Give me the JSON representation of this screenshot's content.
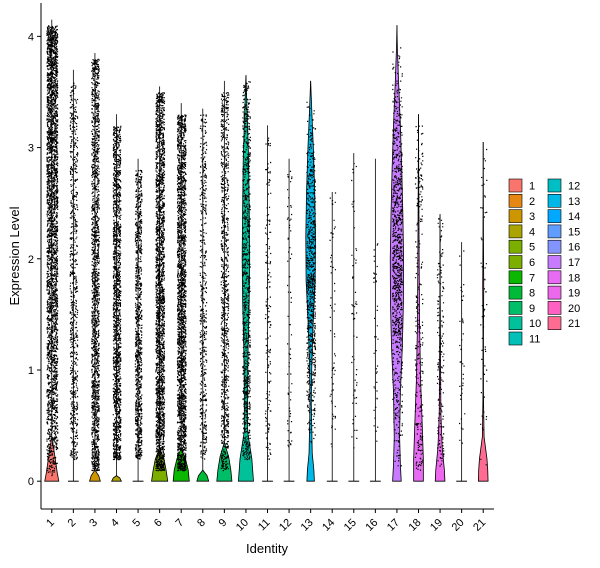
{
  "chart_data": {
    "type": "violin",
    "xlabel": "Identity",
    "ylabel": "Expression Level",
    "ylim": [
      -0.25,
      4.3
    ],
    "yticks": [
      0,
      1,
      2,
      3,
      4
    ],
    "grid": false,
    "legend_placement": "right",
    "categories": [
      "1",
      "2",
      "3",
      "4",
      "5",
      "6",
      "7",
      "8",
      "9",
      "10",
      "11",
      "12",
      "13",
      "14",
      "15",
      "16",
      "17",
      "18",
      "19",
      "20",
      "21"
    ],
    "series": [
      {
        "name": "1",
        "color": "#F8766D",
        "y_max": 4.15,
        "violin_top": 0.4,
        "widths": [
          [
            0,
            0.65
          ],
          [
            0.08,
            0.5
          ],
          [
            0.18,
            0.35
          ],
          [
            0.28,
            0.2
          ],
          [
            0.4,
            0
          ]
        ],
        "points": 3000,
        "point_min": 0.05,
        "point_max": 4.1,
        "point_spread": 0.5,
        "point_mode": "dense_high"
      },
      {
        "name": "2",
        "color": "#E68613",
        "y_max": 3.7,
        "violin_top": 0,
        "widths": [],
        "points": 700,
        "point_min": 0.2,
        "point_max": 3.6,
        "point_spread": 0.35,
        "point_mode": "medium"
      },
      {
        "name": "3",
        "color": "#CD9600",
        "y_max": 3.85,
        "violin_top": 0.1,
        "widths": [
          [
            0,
            0.5
          ],
          [
            0.05,
            0.35
          ],
          [
            0.1,
            0
          ]
        ],
        "points": 1600,
        "point_min": 0.1,
        "point_max": 3.8,
        "point_spread": 0.35,
        "point_mode": "medium"
      },
      {
        "name": "4",
        "color": "#ABA300",
        "y_max": 3.3,
        "violin_top": 0.05,
        "widths": [
          [
            0,
            0.45
          ],
          [
            0.03,
            0.3
          ],
          [
            0.05,
            0
          ]
        ],
        "points": 1500,
        "point_min": 0.2,
        "point_max": 3.2,
        "point_spread": 0.35,
        "point_mode": "medium"
      },
      {
        "name": "5",
        "color": "#7CAE00",
        "y_max": 2.9,
        "violin_top": 0,
        "widths": [],
        "points": 900,
        "point_min": 0.2,
        "point_max": 2.8,
        "point_spread": 0.3,
        "point_mode": "medium"
      },
      {
        "name": "6",
        "color": "#7CAE00",
        "y_max": 3.55,
        "violin_top": 0.3,
        "widths": [
          [
            0,
            0.75
          ],
          [
            0.1,
            0.6
          ],
          [
            0.2,
            0.4
          ],
          [
            0.3,
            0
          ]
        ],
        "points": 2200,
        "point_min": 0.1,
        "point_max": 3.5,
        "point_spread": 0.4,
        "point_mode": "medium"
      },
      {
        "name": "7",
        "color": "#0CB702",
        "y_max": 3.4,
        "violin_top": 0.3,
        "widths": [
          [
            0,
            0.75
          ],
          [
            0.1,
            0.65
          ],
          [
            0.2,
            0.4
          ],
          [
            0.3,
            0
          ]
        ],
        "points": 2200,
        "point_min": 0.1,
        "point_max": 3.3,
        "point_spread": 0.4,
        "point_mode": "medium"
      },
      {
        "name": "8",
        "color": "#00BA38",
        "y_max": 3.35,
        "violin_top": 0.1,
        "widths": [
          [
            0,
            0.55
          ],
          [
            0.05,
            0.4
          ],
          [
            0.1,
            0
          ]
        ],
        "points": 500,
        "point_min": 0.2,
        "point_max": 3.3,
        "point_spread": 0.3,
        "point_mode": "sparse"
      },
      {
        "name": "9",
        "color": "#00BE67",
        "y_max": 3.6,
        "violin_top": 0.35,
        "widths": [
          [
            0,
            0.7
          ],
          [
            0.1,
            0.6
          ],
          [
            0.22,
            0.4
          ],
          [
            0.35,
            0
          ]
        ],
        "points": 900,
        "point_min": 0.1,
        "point_max": 3.5,
        "point_spread": 0.35,
        "point_mode": "medium"
      },
      {
        "name": "10",
        "color": "#00C19A",
        "y_max": 3.65,
        "violin_top": 3.65,
        "widths": [
          [
            0,
            0.7
          ],
          [
            0.2,
            0.55
          ],
          [
            0.45,
            0.15
          ],
          [
            0.8,
            0.15
          ],
          [
            1.2,
            0.2
          ],
          [
            1.6,
            0.3
          ],
          [
            2.0,
            0.35
          ],
          [
            2.5,
            0.3
          ],
          [
            2.9,
            0.25
          ],
          [
            3.3,
            0.12
          ],
          [
            3.65,
            0
          ]
        ],
        "points": 900,
        "point_min": 0.2,
        "point_max": 3.6,
        "point_spread": 0.35,
        "point_mode": "medium"
      },
      {
        "name": "11",
        "color": "#00C0B8",
        "y_max": 3.2,
        "violin_top": 0,
        "widths": [],
        "points": 160,
        "point_min": 0.2,
        "point_max": 3.1,
        "point_spread": 0.25,
        "point_mode": "sparse"
      },
      {
        "name": "12",
        "color": "#00BFC4",
        "y_max": 2.9,
        "violin_top": 0,
        "widths": [],
        "points": 70,
        "point_min": 0.3,
        "point_max": 2.8,
        "point_spread": 0.2,
        "point_mode": "sparse"
      },
      {
        "name": "13",
        "color": "#00B8E7",
        "y_max": 3.6,
        "violin_top": 3.6,
        "widths": [
          [
            0,
            0.35
          ],
          [
            0.1,
            0.3
          ],
          [
            0.25,
            0.15
          ],
          [
            0.7,
            0.06
          ],
          [
            1.0,
            0.1
          ],
          [
            1.4,
            0.22
          ],
          [
            1.8,
            0.42
          ],
          [
            2.2,
            0.45
          ],
          [
            2.6,
            0.38
          ],
          [
            3.0,
            0.25
          ],
          [
            3.3,
            0.12
          ],
          [
            3.6,
            0
          ]
        ],
        "points": 800,
        "point_min": 0.2,
        "point_max": 3.55,
        "point_spread": 0.4,
        "point_mode": "center"
      },
      {
        "name": "14",
        "color": "#00A9FF",
        "y_max": 2.6,
        "violin_top": 0,
        "widths": [],
        "points": 60,
        "point_min": 0.3,
        "point_max": 2.6,
        "point_spread": 0.25,
        "point_mode": "sparse"
      },
      {
        "name": "15",
        "color": "#619CFF",
        "y_max": 2.95,
        "violin_top": 0,
        "widths": [],
        "points": 60,
        "point_min": 0.3,
        "point_max": 2.9,
        "point_spread": 0.25,
        "point_mode": "sparse"
      },
      {
        "name": "16",
        "color": "#8494FF",
        "y_max": 2.9,
        "violin_top": 0,
        "widths": [],
        "points": 40,
        "point_min": 0.3,
        "point_max": 2.2,
        "point_spread": 0.2,
        "point_mode": "sparse"
      },
      {
        "name": "17",
        "color": "#C77CFF",
        "y_max": 4.1,
        "violin_top": 4.1,
        "widths": [
          [
            0,
            0.4
          ],
          [
            0.15,
            0.32
          ],
          [
            0.4,
            0.25
          ],
          [
            0.8,
            0.32
          ],
          [
            1.2,
            0.5
          ],
          [
            1.6,
            0.6
          ],
          [
            2.0,
            0.62
          ],
          [
            2.4,
            0.55
          ],
          [
            2.8,
            0.45
          ],
          [
            3.2,
            0.32
          ],
          [
            3.6,
            0.15
          ],
          [
            3.9,
            0.04
          ],
          [
            4.1,
            0
          ]
        ],
        "points": 900,
        "point_min": 0.1,
        "point_max": 4.0,
        "point_spread": 0.45,
        "point_mode": "center"
      },
      {
        "name": "18",
        "color": "#E76BF3",
        "y_max": 3.3,
        "violin_top": 3.3,
        "widths": [
          [
            0,
            0.45
          ],
          [
            0.2,
            0.45
          ],
          [
            0.5,
            0.35
          ],
          [
            0.9,
            0.2
          ],
          [
            1.4,
            0.1
          ],
          [
            2.0,
            0.06
          ],
          [
            2.6,
            0.03
          ],
          [
            3.3,
            0
          ]
        ],
        "points": 260,
        "point_min": 0.1,
        "point_max": 3.2,
        "point_spread": 0.35,
        "point_mode": "medium"
      },
      {
        "name": "19",
        "color": "#ED68ED",
        "y_max": 2.4,
        "violin_top": 2.4,
        "widths": [
          [
            0,
            0.45
          ],
          [
            0.1,
            0.4
          ],
          [
            0.3,
            0.2
          ],
          [
            0.6,
            0.08
          ],
          [
            1.0,
            0.05
          ],
          [
            1.6,
            0.02
          ],
          [
            2.4,
            0
          ]
        ],
        "points": 170,
        "point_min": 0.1,
        "point_max": 2.4,
        "point_spread": 0.3,
        "point_mode": "sparse"
      },
      {
        "name": "20",
        "color": "#FF61C3",
        "y_max": 2.15,
        "violin_top": 0,
        "widths": [],
        "points": 40,
        "point_min": 0.3,
        "point_max": 2.1,
        "point_spread": 0.25,
        "point_mode": "sparse"
      },
      {
        "name": "21",
        "color": "#FF6C91",
        "y_max": 3.05,
        "violin_top": 3.05,
        "widths": [
          [
            0,
            0.45
          ],
          [
            0.1,
            0.42
          ],
          [
            0.2,
            0.35
          ],
          [
            0.4,
            0.08
          ],
          [
            0.8,
            0.02
          ],
          [
            1.3,
            0.02
          ],
          [
            1.75,
            0.05
          ],
          [
            2.2,
            0.02
          ],
          [
            2.6,
            0.005
          ],
          [
            3.05,
            0
          ]
        ],
        "points": 60,
        "point_min": 0.1,
        "point_max": 3.0,
        "point_spread": 0.3,
        "point_mode": "sparse"
      }
    ]
  }
}
